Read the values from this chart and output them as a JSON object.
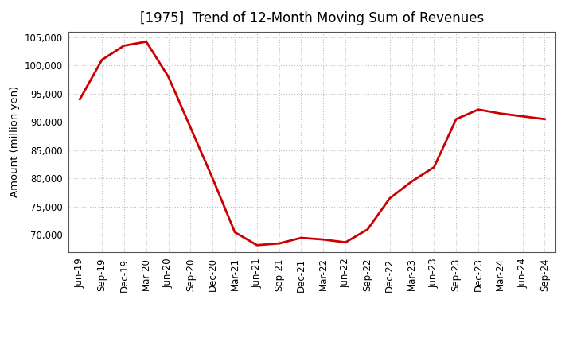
{
  "title": "[1975]  Trend of 12-Month Moving Sum of Revenues",
  "ylabel": "Amount (million yen)",
  "line_color": "#cc0000",
  "background_color": "#ffffff",
  "grid_color": "#bbbbbb",
  "x_labels": [
    "Jun-19",
    "Sep-19",
    "Dec-19",
    "Mar-20",
    "Jun-20",
    "Sep-20",
    "Dec-20",
    "Mar-21",
    "Jun-21",
    "Sep-21",
    "Dec-21",
    "Mar-22",
    "Jun-22",
    "Sep-22",
    "Dec-22",
    "Mar-23",
    "Jun-23",
    "Sep-23",
    "Dec-23",
    "Mar-24",
    "Jun-24",
    "Sep-24"
  ],
  "values": [
    94000,
    101000,
    103500,
    104200,
    98000,
    89000,
    80000,
    70500,
    68200,
    68500,
    69500,
    69200,
    68700,
    71000,
    76500,
    79500,
    82000,
    90500,
    92200,
    91500,
    91000,
    90500
  ],
  "ylim": [
    67000,
    106000
  ],
  "yticks": [
    70000,
    75000,
    80000,
    85000,
    90000,
    95000,
    100000,
    105000
  ],
  "title_fontsize": 12,
  "label_fontsize": 9.5,
  "tick_fontsize": 8.5
}
